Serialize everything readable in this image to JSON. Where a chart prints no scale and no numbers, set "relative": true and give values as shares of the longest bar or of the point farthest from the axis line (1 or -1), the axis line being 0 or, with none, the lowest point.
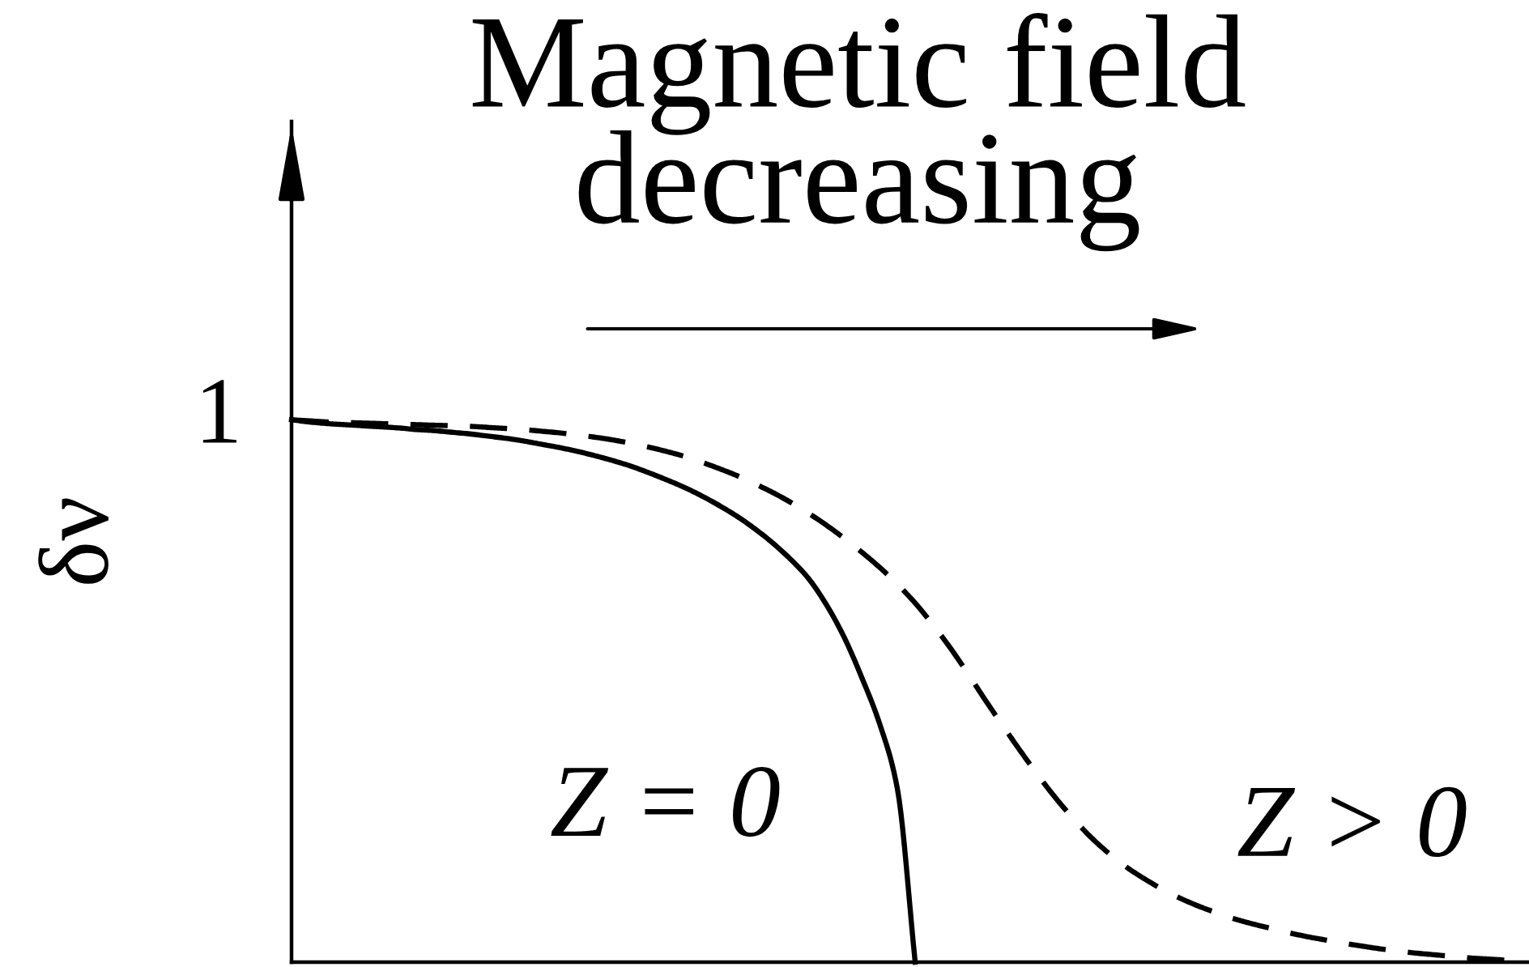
{
  "chart_data": {
    "type": "line",
    "title": "Magnetic field\ndecreasing",
    "ylabel": "δν",
    "relative": true,
    "categories": [
      null,
      null,
      null,
      null,
      null,
      null,
      null,
      null,
      null,
      null,
      null,
      null,
      null,
      null,
      null,
      null,
      null,
      null,
      null,
      null,
      null,
      null,
      null,
      null,
      null,
      null,
      null,
      null,
      null,
      null,
      null,
      null,
      null,
      null,
      null,
      null,
      null,
      null,
      null,
      null,
      null,
      null,
      null,
      null,
      null,
      null,
      null,
      null,
      null,
      null,
      null,
      null,
      null,
      null,
      null,
      null,
      null,
      null,
      null,
      null,
      null,
      null,
      null,
      null,
      null,
      null,
      null,
      null,
      null,
      null
    ],
    "series": [
      {
        "name": "Z = 0",
        "color": "#000000",
        "line_style": "solid",
        "values": [
          1,
          0.996,
          0.993,
          0.991,
          0.989,
          0.987,
          0.985,
          0.982,
          0.98,
          0.977,
          0.974,
          0.97,
          0.966,
          0.961,
          0.955,
          0.949,
          0.942,
          0.934,
          0.925,
          0.915,
          0.903,
          0.89,
          0.876,
          0.86,
          0.842,
          0.822,
          0.799,
          0.773,
          0.743,
          0.708,
          0.66,
          0.6,
          0.525,
          0.44,
          0.32,
          0,
          null,
          null,
          null,
          null,
          null,
          null,
          null,
          null,
          null,
          null,
          null,
          null,
          null,
          null,
          null,
          null,
          null,
          null,
          null,
          null,
          null,
          null,
          null,
          null,
          null,
          null,
          null,
          null,
          null,
          null,
          null,
          null,
          null,
          null
        ]
      },
      {
        "name": "Z > 0",
        "color": "#000000",
        "line_style": "dashed",
        "values": [
          1,
          0.998,
          0.996,
          0.995,
          0.994,
          0.993,
          0.992,
          0.991,
          0.99,
          0.989,
          0.988,
          0.986,
          0.984,
          0.982,
          0.979,
          0.976,
          0.972,
          0.968,
          0.963,
          0.957,
          0.95,
          0.942,
          0.933,
          0.922,
          0.91,
          0.897,
          0.882,
          0.866,
          0.848,
          0.828,
          0.806,
          0.782,
          0.756,
          0.728,
          0.697,
          0.662,
          0.622,
          0.578,
          0.53,
          0.48,
          0.432,
          0.385,
          0.34,
          0.298,
          0.26,
          0.226,
          0.197,
          0.172,
          0.151,
          0.132,
          0.116,
          0.102,
          0.09,
          0.079,
          0.07,
          0.062,
          0.054,
          0.047,
          0.041,
          0.035,
          0.03,
          0.025,
          0.021,
          0.017,
          0.014,
          0.011,
          0.008,
          0.006,
          0.004,
          0.002
        ]
      }
    ],
    "annotations": [
      "1"
    ]
  }
}
